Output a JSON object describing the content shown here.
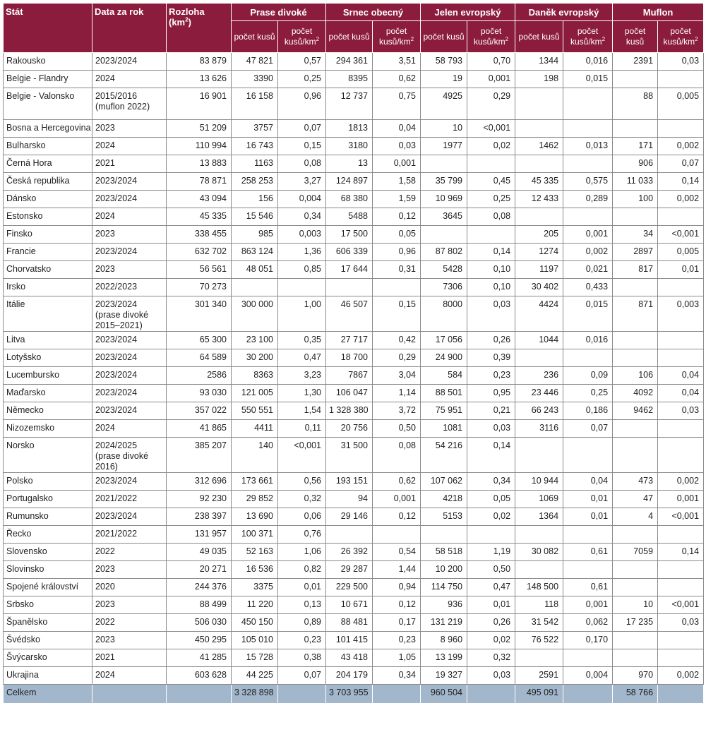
{
  "header": {
    "stat": "Stát",
    "data_za_rok": "Data za rok",
    "rozloha": "Rozloha (km²)",
    "groups": [
      "Prase divoké",
      "Srnec obecný",
      "Jelen evropský",
      "Daněk evropský",
      "Muflon"
    ],
    "sub_count": "počet kusů",
    "sub_density": "počet kusů/km²"
  },
  "rows": [
    {
      "stat": "Rakousko",
      "rok": "2023/2024",
      "rozloha": "83 879",
      "v": [
        "47 821",
        "0,57",
        "294 361",
        "3,51",
        "58 793",
        "0,70",
        "1344",
        "0,016",
        "2391",
        "0,03"
      ]
    },
    {
      "stat": "Belgie - Flandry",
      "rok": "2024",
      "rozloha": "13 626",
      "v": [
        "3390",
        "0,25",
        "8395",
        "0,62",
        "19",
        "0,001",
        "198",
        "0,015",
        "",
        ""
      ]
    },
    {
      "stat": "Belgie - Valonsko",
      "rok": "2015/2016 (muflon 2022)",
      "rozloha": "16 901",
      "v": [
        "16 158",
        "0,96",
        "12 737",
        "0,75",
        "4925",
        "0,29",
        "",
        "",
        "88",
        "0,005"
      ],
      "tall": true
    },
    {
      "stat": "Bosna a Hercegovina",
      "rok": "2023",
      "rozloha": "51 209",
      "v": [
        "3757",
        "0,07",
        "1813",
        "0,04",
        "10",
        "<0,001",
        "",
        "",
        "",
        ""
      ]
    },
    {
      "stat": "Bulharsko",
      "rok": "2024",
      "rozloha": "110 994",
      "v": [
        "16 743",
        "0,15",
        "3180",
        "0,03",
        "1977",
        "0,02",
        "1462",
        "0,013",
        "171",
        "0,002"
      ]
    },
    {
      "stat": "Černá Hora",
      "rok": "2021",
      "rozloha": "13 883",
      "v": [
        "1163",
        "0,08",
        "13",
        "0,001",
        "",
        "",
        "",
        "",
        "906",
        "0,07"
      ]
    },
    {
      "stat": "Česká republika",
      "rok": "2023/2024",
      "rozloha": "78 871",
      "v": [
        "258 253",
        "3,27",
        "124 897",
        "1,58",
        "35 799",
        "0,45",
        "45 335",
        "0,575",
        "11 033",
        "0,14"
      ]
    },
    {
      "stat": "Dánsko",
      "rok": "2023/2024",
      "rozloha": "43 094",
      "v": [
        "156",
        "0,004",
        "68 380",
        "1,59",
        "10 969",
        "0,25",
        "12 433",
        "0,289",
        "100",
        "0,002"
      ]
    },
    {
      "stat": "Estonsko",
      "rok": "2024",
      "rozloha": "45 335",
      "v": [
        "15 546",
        "0,34",
        "5488",
        "0,12",
        "3645",
        "0,08",
        "",
        "",
        "",
        ""
      ]
    },
    {
      "stat": "Finsko",
      "rok": "2023",
      "rozloha": "338 455",
      "v": [
        "985",
        "0,003",
        "17 500",
        "0,05",
        "",
        "",
        "205",
        "0,001",
        "34",
        "<0,001"
      ]
    },
    {
      "stat": "Francie",
      "rok": "2023/2024",
      "rozloha": "632 702",
      "v": [
        "863 124",
        "1,36",
        "606 339",
        "0,96",
        "87 802",
        "0,14",
        "1274",
        "0,002",
        "2897",
        "0,005"
      ]
    },
    {
      "stat": "Chorvatsko",
      "rok": "2023",
      "rozloha": "56 561",
      "v": [
        "48 051",
        "0,85",
        "17 644",
        "0,31",
        "5428",
        "0,10",
        "1197",
        "0,021",
        "817",
        "0,01"
      ]
    },
    {
      "stat": "Irsko",
      "rok": "2022/2023",
      "rozloha": "70 273",
      "v": [
        "",
        "",
        "",
        "",
        "7306",
        "0,10",
        "30 402",
        "0,433",
        "",
        ""
      ]
    },
    {
      "stat": "Itálie",
      "rok": "2023/2024 (prase divoké 2015–2021)",
      "rozloha": "301 340",
      "v": [
        "300 000",
        "1,00",
        "46 507",
        "0,15",
        "8000",
        "0,03",
        "4424",
        "0,015",
        "871",
        "0,003"
      ],
      "tall": true
    },
    {
      "stat": "Litva",
      "rok": "2023/2024",
      "rozloha": "65 300",
      "v": [
        "23 100",
        "0,35",
        "27 717",
        "0,42",
        "17 056",
        "0,26",
        "1044",
        "0,016",
        "",
        ""
      ]
    },
    {
      "stat": "Lotyšsko",
      "rok": "2023/2024",
      "rozloha": "64 589",
      "v": [
        "30 200",
        "0,47",
        "18 700",
        "0,29",
        "24 900",
        "0,39",
        "",
        "",
        "",
        ""
      ]
    },
    {
      "stat": "Lucembursko",
      "rok": "2023/2024",
      "rozloha": "2586",
      "v": [
        "8363",
        "3,23",
        "7867",
        "3,04",
        "584",
        "0,23",
        "236",
        "0,09",
        "106",
        "0,04"
      ]
    },
    {
      "stat": "Maďarsko",
      "rok": "2023/2024",
      "rozloha": "93 030",
      "v": [
        "121 005",
        "1,30",
        "106 047",
        "1,14",
        "88 501",
        "0,95",
        "23 446",
        "0,25",
        "4092",
        "0,04"
      ]
    },
    {
      "stat": "Německo",
      "rok": "2023/2024",
      "rozloha": "357 022",
      "v": [
        "550 551",
        "1,54",
        "1 328 380",
        "3,72",
        "75 951",
        "0,21",
        "66 243",
        "0,186",
        "9462",
        "0,03"
      ]
    },
    {
      "stat": "Nizozemsko",
      "rok": "2024",
      "rozloha": "41 865",
      "v": [
        "4411",
        "0,11",
        "20 756",
        "0,50",
        "1081",
        "0,03",
        "3116",
        "0,07",
        "",
        ""
      ]
    },
    {
      "stat": "Norsko",
      "rok": "2024/2025 (prase divoké 2016)",
      "rozloha": "385 207",
      "v": [
        "140",
        "<0,001",
        "31 500",
        "0,08",
        "54 216",
        "0,14",
        "",
        "",
        "",
        ""
      ],
      "tall": true
    },
    {
      "stat": "Polsko",
      "rok": "2023/2024",
      "rozloha": "312 696",
      "v": [
        "173 661",
        "0,56",
        "193 151",
        "0,62",
        "107 062",
        "0,34",
        "10 944",
        "0,04",
        "473",
        "0,002"
      ]
    },
    {
      "stat": "Portugalsko",
      "rok": "2021/2022",
      "rozloha": "92 230",
      "v": [
        "29 852",
        "0,32",
        "94",
        "0,001",
        "4218",
        "0,05",
        "1069",
        "0,01",
        "47",
        "0,001"
      ]
    },
    {
      "stat": "Rumunsko",
      "rok": "2023/2024",
      "rozloha": "238 397",
      "v": [
        "13 690",
        "0,06",
        "29 146",
        "0,12",
        "5153",
        "0,02",
        "1364",
        "0,01",
        "4",
        "<0,001"
      ]
    },
    {
      "stat": "Řecko",
      "rok": "2021/2022",
      "rozloha": "131 957",
      "v": [
        "100 371",
        "0,76",
        "",
        "",
        "",
        "",
        "",
        "",
        "",
        ""
      ]
    },
    {
      "stat": "Slovensko",
      "rok": "2022",
      "rozloha": "49 035",
      "v": [
        "52 163",
        "1,06",
        "26 392",
        "0,54",
        "58 518",
        "1,19",
        "30 082",
        "0,61",
        "7059",
        "0,14"
      ]
    },
    {
      "stat": "Slovinsko",
      "rok": "2023",
      "rozloha": "20 271",
      "v": [
        "16 536",
        "0,82",
        "29 287",
        "1,44",
        "10 200",
        "0,50",
        "",
        "",
        "",
        ""
      ]
    },
    {
      "stat": "Spojené království",
      "rok": "2020",
      "rozloha": "244 376",
      "v": [
        "3375",
        "0,01",
        "229 500",
        "0,94",
        "114 750",
        "0,47",
        "148 500",
        "0,61",
        "",
        ""
      ]
    },
    {
      "stat": "Srbsko",
      "rok": "2023",
      "rozloha": "88 499",
      "v": [
        "11 220",
        "0,13",
        "10 671",
        "0,12",
        "936",
        "0,01",
        "118",
        "0,001",
        "10",
        "<0,001"
      ]
    },
    {
      "stat": "Španělsko",
      "rok": "2022",
      "rozloha": "506 030",
      "v": [
        "450 150",
        "0,89",
        "88 481",
        "0,17",
        "131 219",
        "0,26",
        "31 542",
        "0,062",
        "17 235",
        "0,03"
      ]
    },
    {
      "stat": "Švédsko",
      "rok": "2023",
      "rozloha": "450 295",
      "v": [
        "105 010",
        "0,23",
        "101 415",
        "0,23",
        "8 960",
        "0,02",
        "76 522",
        "0,170",
        "",
        ""
      ]
    },
    {
      "stat": "Švýcarsko",
      "rok": "2021",
      "rozloha": "41 285",
      "v": [
        "15 728",
        "0,38",
        "43 418",
        "1,05",
        "13 199",
        "0,32",
        "",
        "",
        "",
        ""
      ]
    },
    {
      "stat": "Ukrajina",
      "rok": "2024",
      "rozloha": "603 628",
      "v": [
        "44 225",
        "0,07",
        "204 179",
        "0,34",
        "19 327",
        "0,03",
        "2591",
        "0,004",
        "970",
        "0,002"
      ]
    }
  ],
  "total": {
    "label": "Celkem",
    "v": [
      "3 328 898",
      "",
      "3 703 955",
      "",
      "960 504",
      "",
      "495 091",
      "",
      "58 766",
      ""
    ]
  },
  "colors": {
    "header": "#8b1c3d",
    "total_row": "#a3b7cc",
    "grid": "#8a8a8a"
  }
}
